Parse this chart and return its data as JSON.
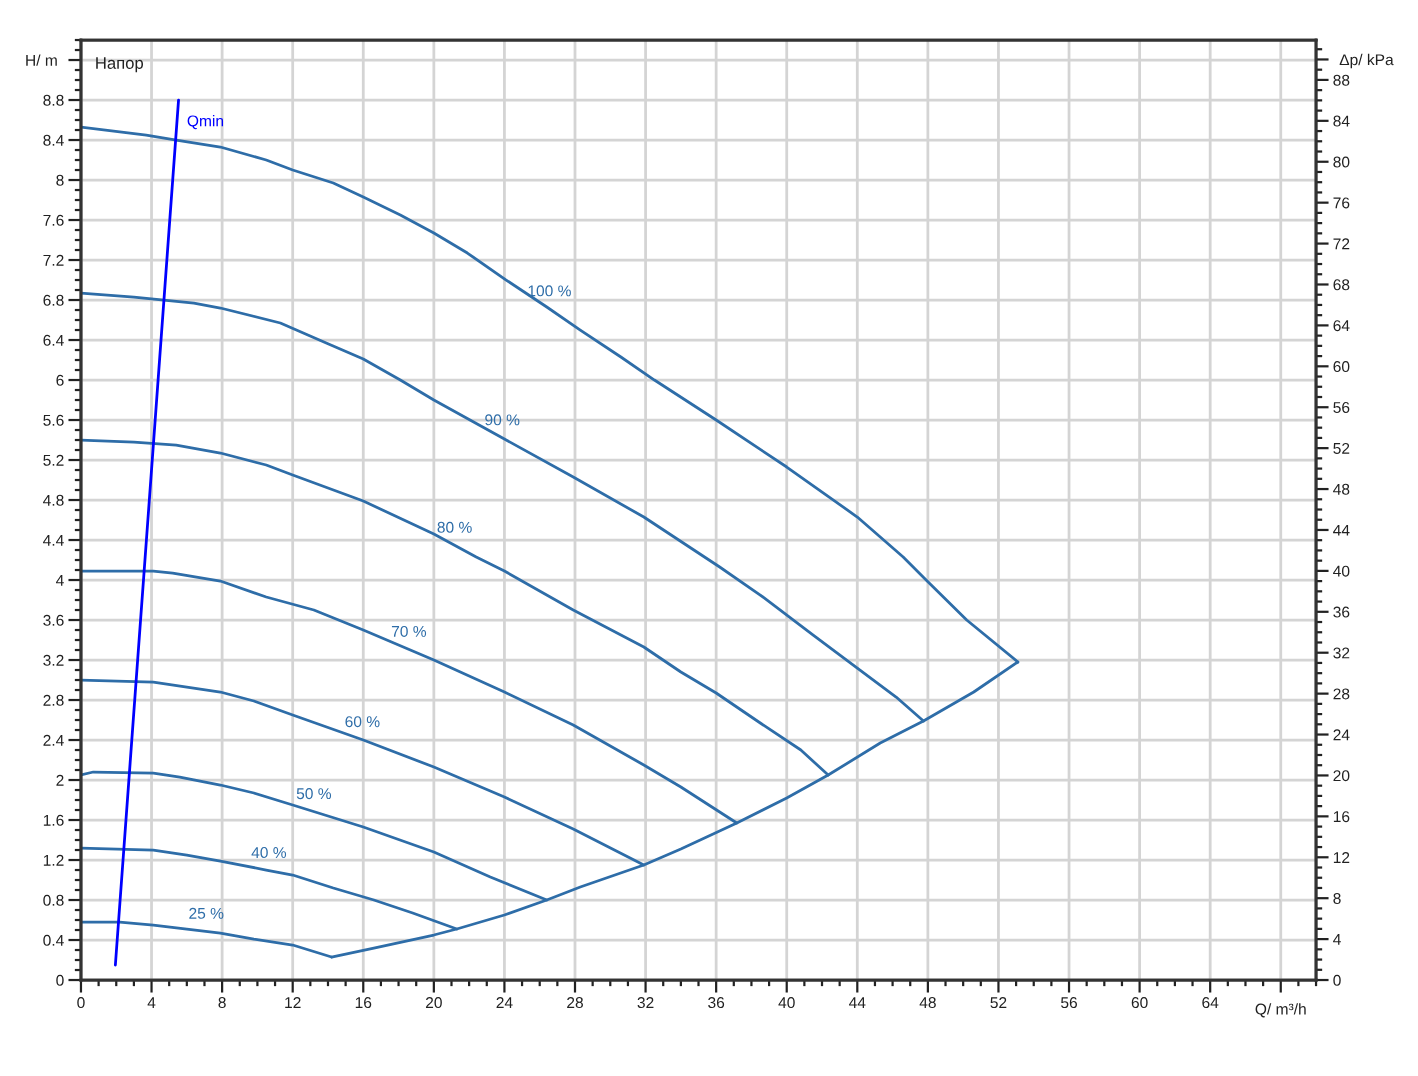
{
  "chart_data": {
    "type": "line",
    "title": "Напор",
    "xlabel": "Q/ m³/h",
    "ylabel": "H/ m",
    "y2label": "Δp/ kPa",
    "xlim": [
      0,
      70
    ],
    "ylim": [
      0,
      9.4
    ],
    "y2lim": [
      0,
      91.9
    ],
    "xticks": [
      0,
      4,
      8,
      12,
      16,
      20,
      24,
      28,
      32,
      36,
      40,
      44,
      48,
      52,
      56,
      60,
      64,
      {
        "value": 68,
        "label": null
      }
    ],
    "yticks": [
      0,
      0.4,
      0.8,
      1.2,
      1.6,
      2,
      2.4,
      2.8,
      3.2,
      3.6,
      4,
      4.4,
      4.8,
      5.2,
      5.6,
      6,
      6.4,
      6.8,
      7.2,
      7.6,
      8,
      8.4,
      8.8,
      {
        "value": 9.2,
        "label": null
      }
    ],
    "y2ticks": [
      0,
      4,
      8,
      12,
      16,
      20,
      24,
      28,
      32,
      36,
      40,
      44,
      48,
      52,
      56,
      60,
      64,
      68,
      72,
      76,
      80,
      84,
      88,
      {
        "value": 90,
        "label": null
      }
    ],
    "grid": true,
    "series": [
      {
        "name": "100 %",
        "color": "#2e6da8",
        "x": [
          0,
          3.7,
          5.4,
          7.9,
          10.5,
          12,
          14.3,
          16,
          18.1,
          20,
          21.9,
          24.1,
          26.4,
          28.3,
          30.6,
          32.5,
          36,
          40,
          44,
          46.6,
          47.9,
          50.2,
          53.1
        ],
        "values": [
          8.53,
          8.45,
          8.4,
          8.33,
          8.2,
          8.1,
          7.97,
          7.83,
          7.65,
          7.47,
          7.27,
          7,
          6.73,
          6.5,
          6.23,
          6,
          5.6,
          5.13,
          4.63,
          4.23,
          4,
          3.6,
          3.18
        ]
      },
      {
        "name": "90 %",
        "color": "#2e6da8",
        "x": [
          0,
          3,
          6.4,
          7.9,
          11.3,
          13.9,
          16,
          18.1,
          20,
          24.1,
          27.9,
          31.9,
          36.2,
          38.5,
          41.5,
          44,
          46.2,
          47.75
        ],
        "values": [
          6.87,
          6.83,
          6.77,
          6.72,
          6.57,
          6.37,
          6.21,
          6,
          5.8,
          5.4,
          5.03,
          4.63,
          4.13,
          3.85,
          3.45,
          3.12,
          2.83,
          2.59
        ]
      },
      {
        "name": "80 %",
        "color": "#2e6da8",
        "x": [
          0,
          3,
          5.4,
          7.9,
          10.5,
          12,
          16,
          20,
          22.4,
          24,
          27.9,
          31.9,
          34,
          36,
          38.5,
          40.8,
          42.35
        ],
        "values": [
          5.4,
          5.38,
          5.35,
          5.27,
          5.15,
          5.05,
          4.79,
          4.46,
          4.23,
          4.09,
          3.7,
          3.33,
          3.08,
          2.87,
          2.57,
          2.3,
          2.05
        ]
      },
      {
        "name": "70 %",
        "color": "#2e6da8",
        "x": [
          0,
          4.1,
          5.2,
          7.9,
          10.5,
          13.2,
          16,
          20,
          24,
          27.9,
          31.9,
          34,
          36.2,
          37.17
        ],
        "values": [
          4.09,
          4.09,
          4.07,
          3.99,
          3.83,
          3.7,
          3.5,
          3.2,
          2.88,
          2.55,
          2.15,
          1.93,
          1.68,
          1.57
        ]
      },
      {
        "name": "60 %",
        "color": "#2e6da8",
        "x": [
          0,
          4.1,
          7.9,
          9.8,
          12,
          16,
          20,
          24,
          27.9,
          31.9
        ],
        "values": [
          3,
          2.98,
          2.88,
          2.79,
          2.65,
          2.4,
          2.13,
          1.83,
          1.51,
          1.15
        ]
      },
      {
        "name": "50 %",
        "color": "#2e6da8",
        "x": [
          0,
          0.7,
          4.1,
          5.6,
          7.9,
          9.8,
          12,
          16,
          20,
          23.2,
          26.4
        ],
        "values": [
          2.05,
          2.08,
          2.07,
          2.03,
          1.95,
          1.87,
          1.75,
          1.53,
          1.28,
          1.03,
          0.8
        ]
      },
      {
        "name": "40 %",
        "color": "#2e6da8",
        "x": [
          0,
          4.1,
          6,
          7.9,
          10.5,
          12,
          14.3,
          16.6,
          18.8,
          21.3
        ],
        "values": [
          1.32,
          1.3,
          1.25,
          1.19,
          1.1,
          1.05,
          0.92,
          0.8,
          0.67,
          0.51
        ]
      },
      {
        "name": "25 %",
        "color": "#2e6da8",
        "x": [
          0,
          2.2,
          4.1,
          6,
          7.9,
          9.8,
          12,
          14.2
        ],
        "values": [
          0.58,
          0.58,
          0.55,
          0.51,
          0.47,
          0.41,
          0.35,
          0.23
        ]
      },
      {
        "color": "#2e6da8",
        "x": [
          14.2,
          16.6,
          20,
          21.3,
          24,
          26.4,
          28.3,
          31.9,
          34,
          37.17,
          40,
          42.35,
          45.3,
          47.75,
          50.6,
          53.1
        ],
        "values": [
          0.23,
          0.32,
          0.45,
          0.51,
          0.65,
          0.8,
          0.93,
          1.15,
          1.31,
          1.57,
          1.82,
          2.05,
          2.37,
          2.59,
          2.88,
          3.18
        ]
      },
      {
        "name": "Qmin",
        "color": "#0000ff",
        "x": [
          1.95,
          5.53
        ],
        "values": [
          0.15,
          8.8
        ]
      }
    ]
  }
}
